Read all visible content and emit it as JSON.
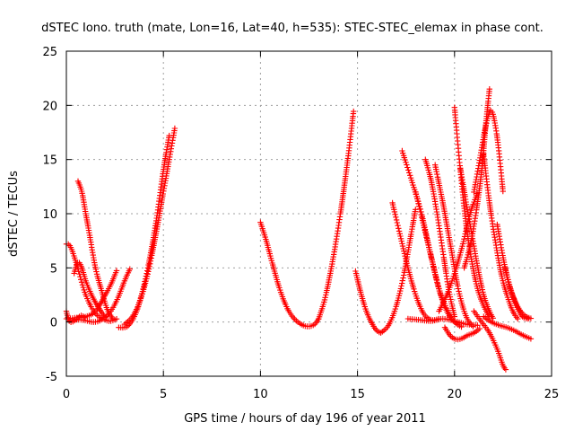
{
  "chart_data": {
    "type": "scatter",
    "title": "dSTEC Iono. truth (mate, Lon=16, Lat=40, h=535): STEC-STEC_elemax in phase cont.",
    "xlabel": "GPS time / hours of day 196 of year 2011",
    "ylabel": "dSTEC  / TECUs",
    "xlim": [
      0,
      25
    ],
    "ylim": [
      -5,
      25
    ],
    "x_ticks": [
      "0",
      "5",
      "10",
      "15",
      "20",
      "25"
    ],
    "y_ticks": [
      "-5",
      "0",
      "5",
      "10",
      "15",
      "20",
      "25"
    ],
    "grid": true,
    "marker": "plus",
    "color": "#ff0000",
    "series": [
      {
        "x": [
          0.0,
          0.2,
          0.5,
          1.0,
          1.5,
          2.0,
          2.3,
          2.6
        ],
        "y": [
          7.2,
          7.0,
          5.5,
          2.5,
          0.8,
          0.2,
          0.1,
          0.3
        ]
      },
      {
        "x": [
          0.6,
          0.8,
          1.0,
          1.2,
          1.5,
          1.8,
          2.1,
          2.4
        ],
        "y": [
          13.0,
          12.0,
          10.0,
          8.0,
          5.0,
          3.0,
          1.2,
          0.3
        ]
      },
      {
        "x": [
          0.4,
          0.6,
          0.8,
          1.0,
          1.3,
          1.6,
          2.0
        ],
        "y": [
          4.5,
          5.5,
          5.0,
          3.8,
          2.5,
          1.5,
          0.4
        ]
      },
      {
        "x": [
          0.0,
          0.1,
          0.2,
          0.4,
          0.6,
          0.8,
          1.0
        ],
        "y": [
          1.0,
          0.3,
          0.0,
          0.1,
          0.4,
          0.6,
          0.3
        ]
      },
      {
        "x": [
          0.0,
          0.5,
          1.0,
          1.5,
          2.0,
          2.3,
          2.6
        ],
        "y": [
          0.3,
          0.4,
          0.5,
          1.0,
          2.5,
          3.5,
          4.8
        ]
      },
      {
        "x": [
          0.2,
          0.8,
          1.4,
          1.8,
          2.2,
          2.6,
          3.0,
          3.3
        ],
        "y": [
          0.2,
          0.2,
          0.0,
          0.2,
          0.8,
          2.0,
          3.8,
          5.0
        ]
      },
      {
        "x": [
          2.7,
          3.0,
          3.2,
          3.5,
          3.8,
          4.2,
          4.6,
          5.0,
          5.3
        ],
        "y": [
          -0.5,
          -0.5,
          -0.3,
          0.5,
          2.0,
          5.0,
          9.0,
          14.0,
          17.2
        ]
      },
      {
        "x": [
          3.0,
          3.4,
          3.8,
          4.2,
          4.6,
          5.0,
          5.3,
          5.6
        ],
        "y": [
          -0.2,
          0.5,
          2.0,
          4.5,
          8.0,
          12.0,
          15.0,
          18.0
        ]
      },
      {
        "x": [
          10.0,
          10.3,
          10.6,
          11.0,
          11.4,
          11.8,
          12.2,
          12.5,
          12.8,
          13.0
        ],
        "y": [
          9.2,
          7.5,
          5.5,
          3.0,
          1.2,
          0.2,
          -0.3,
          -0.4,
          -0.2,
          0.3
        ]
      },
      {
        "x": [
          13.0,
          13.3,
          13.6,
          13.9,
          14.2,
          14.5,
          14.8
        ],
        "y": [
          0.3,
          2.0,
          4.5,
          7.5,
          11.0,
          15.0,
          19.5
        ]
      },
      {
        "x": [
          14.9,
          15.2,
          15.5,
          15.8,
          16.0,
          16.2
        ],
        "y": [
          4.7,
          2.5,
          0.8,
          -0.3,
          -0.8,
          -1.0
        ]
      },
      {
        "x": [
          16.2,
          16.6,
          17.0,
          17.4,
          17.8,
          18.0
        ],
        "y": [
          -1.0,
          -0.3,
          1.5,
          4.5,
          8.5,
          10.5
        ]
      },
      {
        "x": [
          16.8,
          17.2,
          17.6,
          18.0,
          18.4,
          18.8,
          19.2
        ],
        "y": [
          11.0,
          8.0,
          5.0,
          2.5,
          0.8,
          0.2,
          0.3
        ]
      },
      {
        "x": [
          17.3,
          17.8,
          18.3,
          18.8,
          19.3,
          19.8
        ],
        "y": [
          15.8,
          13.0,
          10.0,
          6.0,
          2.5,
          0.5
        ]
      },
      {
        "x": [
          17.6,
          18.2,
          18.8,
          19.4,
          20.0,
          20.6,
          21.2
        ],
        "y": [
          0.3,
          0.2,
          0.1,
          0.3,
          0.1,
          -0.2,
          -0.3
        ]
      },
      {
        "x": [
          18.0,
          18.4,
          18.8,
          19.2,
          19.6,
          20.0,
          20.4
        ],
        "y": [
          12.0,
          9.0,
          6.0,
          3.0,
          1.0,
          0.0,
          -0.5
        ]
      },
      {
        "x": [
          18.5,
          18.8,
          19.1,
          19.4,
          19.7,
          20.0
        ],
        "y": [
          15.0,
          13.0,
          10.0,
          6.5,
          3.0,
          0.5
        ]
      },
      {
        "x": [
          19.0,
          19.4,
          19.8,
          20.2,
          20.6,
          21.0
        ],
        "y": [
          14.5,
          11.0,
          7.0,
          3.0,
          0.5,
          -0.5
        ]
      },
      {
        "x": [
          19.5,
          19.8,
          20.1,
          20.4,
          20.7,
          21.0,
          21.3
        ],
        "y": [
          -0.5,
          -1.3,
          -1.6,
          -1.5,
          -1.2,
          -1.0,
          -0.6
        ]
      },
      {
        "x": [
          19.2,
          19.6,
          20.0,
          20.4,
          20.8,
          21.2
        ],
        "y": [
          1.0,
          2.5,
          4.5,
          7.0,
          10.0,
          12.0
        ]
      },
      {
        "x": [
          20.0,
          20.3,
          20.6,
          20.9,
          21.2,
          21.5,
          21.8
        ],
        "y": [
          19.8,
          14.0,
          9.0,
          5.5,
          3.0,
          1.5,
          0.5
        ]
      },
      {
        "x": [
          20.3,
          20.6,
          20.9,
          21.2,
          21.5,
          21.8,
          22.0
        ],
        "y": [
          14.2,
          11.0,
          8.0,
          5.0,
          2.5,
          1.0,
          0.3
        ]
      },
      {
        "x": [
          20.5,
          20.8,
          21.1,
          21.4,
          21.6,
          21.8
        ],
        "y": [
          5.0,
          7.0,
          10.0,
          14.0,
          18.0,
          21.5
        ]
      },
      {
        "x": [
          21.0,
          21.3,
          21.6,
          21.9,
          22.2,
          22.5
        ],
        "y": [
          12.0,
          15.0,
          18.0,
          19.5,
          17.0,
          12.0
        ]
      },
      {
        "x": [
          21.5,
          21.8,
          22.1,
          22.4,
          22.7,
          23.0,
          23.3
        ],
        "y": [
          15.5,
          11.0,
          7.5,
          4.5,
          2.5,
          1.0,
          0.2
        ]
      },
      {
        "x": [
          21.0,
          21.4,
          21.8,
          22.2,
          22.5,
          22.7
        ],
        "y": [
          1.0,
          0.0,
          -1.0,
          -2.5,
          -4.0,
          -4.5
        ]
      },
      {
        "x": [
          21.5,
          21.9,
          22.3,
          22.7,
          23.1,
          23.5,
          24.0
        ],
        "y": [
          0.5,
          0.0,
          -0.3,
          -0.5,
          -0.8,
          -1.2,
          -1.6
        ]
      },
      {
        "x": [
          22.2,
          22.5,
          22.8,
          23.1,
          23.4,
          23.7,
          24.0
        ],
        "y": [
          9.0,
          6.0,
          3.5,
          2.0,
          1.0,
          0.5,
          0.3
        ]
      },
      {
        "x": [
          22.6,
          22.9,
          23.2,
          23.5,
          23.8
        ],
        "y": [
          5.0,
          3.0,
          1.5,
          0.5,
          0.3
        ]
      }
    ]
  }
}
